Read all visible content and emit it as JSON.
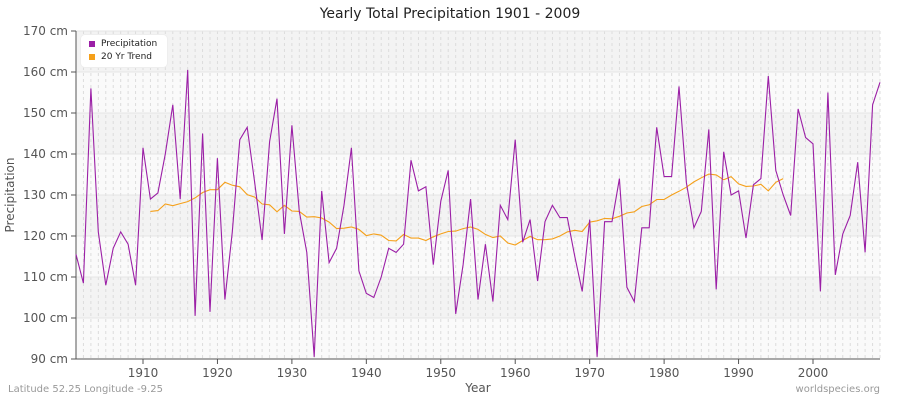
{
  "chart_data": {
    "type": "line",
    "title": "Yearly Total Precipitation 1901 - 2009",
    "xlabel": "Year",
    "ylabel": "Precipitation",
    "ylim": [
      90,
      170
    ],
    "xlim": [
      1901,
      2009
    ],
    "y_ticks": [
      "90 cm",
      "100 cm",
      "110 cm",
      "120 cm",
      "130 cm",
      "140 cm",
      "150 cm",
      "160 cm",
      "170 cm"
    ],
    "x_ticks": [
      "1910",
      "1920",
      "1930",
      "1940",
      "1950",
      "1960",
      "1970",
      "1980",
      "1990",
      "2000"
    ],
    "legend_position": "top-left",
    "grid": true,
    "series": [
      {
        "name": "Precipitation",
        "color": "#9b1fa6",
        "start_year": 1901,
        "values": [
          115.5,
          108.5,
          156,
          121,
          108,
          117,
          121,
          118,
          108,
          141.5,
          129,
          130.5,
          140,
          152,
          129,
          160.5,
          100.5,
          145,
          101.5,
          139,
          104.5,
          121,
          143.5,
          146.5,
          133,
          119,
          143,
          153.5,
          120.5,
          147,
          126,
          116,
          90.5,
          131,
          113.5,
          117,
          127.5,
          141.5,
          111.5,
          106,
          105,
          110,
          117,
          116,
          118,
          138.5,
          131,
          132,
          113,
          128.5,
          136,
          101,
          113,
          129,
          104.5,
          118,
          104,
          127.5,
          124,
          143.5,
          118.5,
          124,
          109,
          123.5,
          127.5,
          124.5,
          124.5,
          115,
          106.5,
          124,
          90.5,
          123.5,
          123.5,
          134,
          107.5,
          104,
          122,
          122,
          146.5,
          134.5,
          134.5,
          156.5,
          133,
          122,
          126,
          146,
          107,
          140.5,
          130,
          131,
          119.5,
          132.5,
          134,
          159,
          136,
          130,
          125,
          151,
          144,
          142.5,
          106.5,
          155,
          110.5,
          120.5,
          125,
          138,
          116,
          152,
          157.5
        ]
      },
      {
        "name": "20 Yr Trend",
        "color": "#f5a01a",
        "start_year": 1911,
        "values": [
          126,
          126.2,
          127.8,
          127.4,
          127.9,
          128.4,
          129.3,
          130.6,
          131.3,
          131.3,
          133.1,
          132.4,
          132,
          130.1,
          129.5,
          127.8,
          127.6,
          125.9,
          127.5,
          126.1,
          126,
          124.6,
          124.7,
          124.4,
          123.4,
          121.8,
          121.9,
          122.2,
          121.6,
          120.1,
          120.5,
          120.2,
          118.9,
          118.8,
          120.4,
          119.5,
          119.5,
          118.9,
          119.8,
          120.5,
          121.1,
          121.2,
          121.8,
          122.2,
          121.6,
          120.4,
          119.6,
          120,
          118.3,
          117.8,
          118.9,
          119.9,
          119.1,
          119.1,
          119.3,
          120,
          121,
          121.4,
          121.1,
          123.4,
          123.7,
          124.3,
          124.2,
          124.8,
          125.6,
          125.9,
          127.2,
          127.6,
          128.9,
          128.9,
          130,
          130.9,
          131.9,
          133.2,
          134.2,
          135.1,
          134.9,
          133.7,
          134.5,
          132.7,
          132.1,
          132.2,
          132.6,
          131,
          133.1,
          134
        ]
      }
    ]
  },
  "legend": {
    "items": [
      {
        "label": "Precipitation",
        "color": "#9b1fa6"
      },
      {
        "label": "20 Yr Trend",
        "color": "#f5a01a"
      }
    ]
  },
  "footer": {
    "left": "Latitude 52.25 Longitude -9.25",
    "right": "worldspecies.org"
  }
}
